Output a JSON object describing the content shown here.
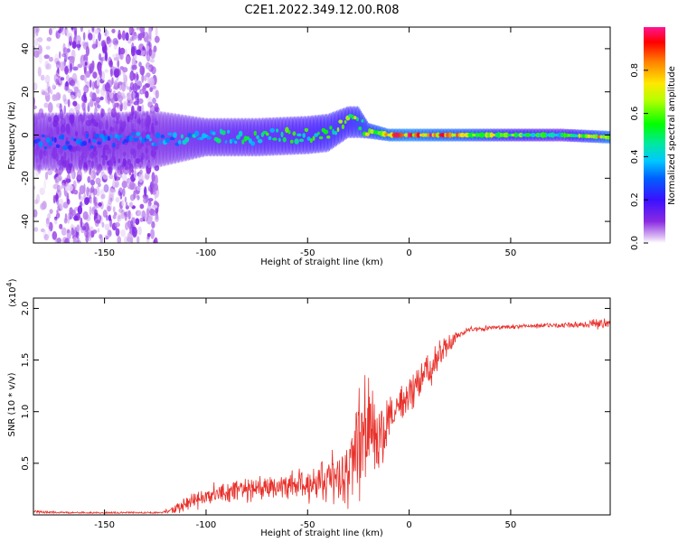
{
  "title": "C2E1.2022.349.12.00.R08",
  "colors": {
    "snr_line": "#e8302a",
    "spectrum_sparse": "#b98ae6",
    "spectrum_dense": "#6a1ee6",
    "axis": "#000000"
  },
  "chart_data": [
    {
      "type": "heatmap",
      "title": "C2E1.2022.349.12.00.R08",
      "xlabel": "Height of straight line (km)",
      "ylabel": "Frequency (Hz)",
      "xlim": [
        -185,
        99
      ],
      "ylim": [
        -50,
        50
      ],
      "xticks": [
        -150,
        -100,
        -50,
        0,
        50
      ],
      "yticks": [
        -40,
        -20,
        0,
        20,
        40
      ],
      "colorbar": {
        "label": "Normalized spectral amplitude",
        "range": [
          0,
          1
        ],
        "ticks": [
          "0.0",
          "0.2",
          "0.4",
          "0.6",
          "0.8"
        ],
        "tick_values": [
          0,
          0.2,
          0.4,
          0.6,
          0.8
        ],
        "colormap": "rainbow (purple to red)"
      },
      "regions": [
        {
          "name": "wide noise band",
          "x_range": [
            -175,
            -124
          ],
          "freq_range": [
            -50,
            50
          ],
          "amplitude": 0.05
        },
        {
          "name": "sparse noise",
          "x_range": [
            -185,
            -175
          ],
          "freq_range": [
            -50,
            50
          ],
          "amplitude": 0.03
        },
        {
          "name": "signal core",
          "x_range": [
            -185,
            99
          ],
          "freq_center": 0,
          "amplitude_peak": 1.0
        }
      ],
      "centerline": {
        "x": [
          -185,
          -150,
          -125,
          -100,
          -75,
          -50,
          -40,
          -30,
          -25,
          -20,
          -10,
          0,
          25,
          50,
          75,
          99
        ],
        "freq": [
          -3,
          -3,
          -2,
          -1,
          -1,
          0,
          1,
          6,
          6,
          2,
          0,
          0,
          0,
          0,
          0,
          -1
        ],
        "width": [
          18,
          18,
          18,
          12,
          12,
          12,
          12,
          10,
          10,
          5,
          4,
          4,
          4,
          4,
          4,
          4
        ],
        "amplitude": [
          0.3,
          0.3,
          0.35,
          0.45,
          0.5,
          0.55,
          0.6,
          0.6,
          0.65,
          0.7,
          0.85,
          0.9,
          0.8,
          0.6,
          0.5,
          0.85
        ]
      }
    },
    {
      "type": "line",
      "xlabel": "Height of straight line (km)",
      "ylabel": "SNR (10 * v/v)",
      "multiplier_base": "(x10",
      "multiplier_exp": "4",
      "multiplier_end": ")",
      "xlim": [
        -185,
        99
      ],
      "ylim": [
        0,
        21000
      ],
      "xticks": [
        -150,
        -100,
        -50,
        0,
        50
      ],
      "yticks": [
        5000,
        10000,
        15000,
        20000
      ],
      "ytick_labels": [
        "0.5",
        "1.0",
        "1.5",
        "2.0"
      ],
      "series": [
        {
          "name": "SNR",
          "x": [
            -185,
            -170,
            -150,
            -130,
            -120,
            -110,
            -100,
            -90,
            -80,
            -70,
            -60,
            -50,
            -40,
            -35,
            -30,
            -25,
            -20,
            -15,
            -10,
            -5,
            0,
            5,
            10,
            15,
            20,
            25,
            30,
            40,
            50,
            60,
            70,
            80,
            90,
            95,
            99
          ],
          "y": [
            300,
            200,
            100,
            100,
            200,
            1000,
            1800,
            2200,
            2400,
            2700,
            2800,
            3000,
            3500,
            4000,
            5000,
            7000,
            8500,
            8000,
            9500,
            10500,
            11500,
            13000,
            14000,
            15500,
            16500,
            17500,
            18000,
            18100,
            18200,
            18300,
            18350,
            18400,
            18500,
            18600,
            18700
          ],
          "noise": [
            200,
            150,
            100,
            100,
            300,
            900,
            1200,
            1300,
            1400,
            1400,
            1500,
            2000,
            2600,
            3500,
            4500,
            6500,
            6000,
            4500,
            4000,
            2000,
            2000,
            2200,
            2000,
            1800,
            1000,
            500,
            300,
            250,
            250,
            250,
            300,
            300,
            500,
            800,
            600
          ]
        }
      ]
    }
  ]
}
